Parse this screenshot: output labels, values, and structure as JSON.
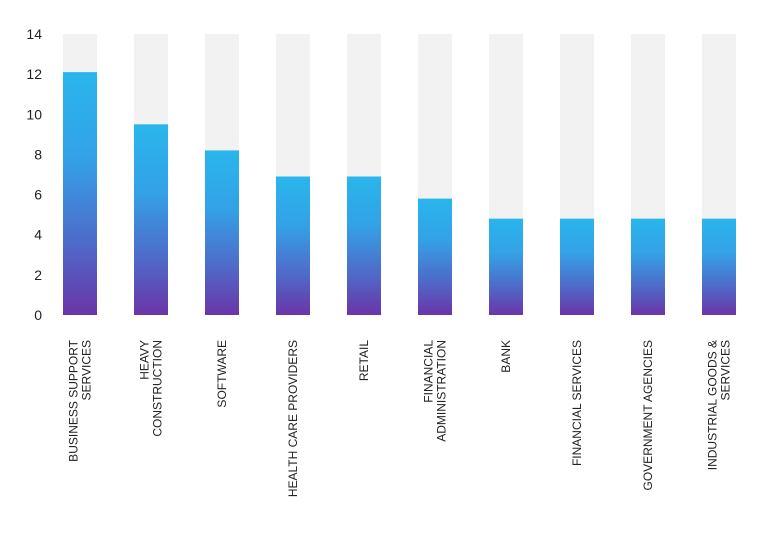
{
  "chart_data": {
    "type": "bar",
    "title": "",
    "xlabel": "",
    "ylabel": "",
    "categories": [
      [
        "BUSINESS SUPPORT",
        "SERVICES"
      ],
      [
        "HEAVY",
        "CONSTRUCTION"
      ],
      [
        "SOFTWARE"
      ],
      [
        "HEALTH CARE PROVIDERS"
      ],
      [
        "RETAIL"
      ],
      [
        "FINANCIAL",
        "ADMINISTRATION"
      ],
      [
        "BANK"
      ],
      [
        "FINANCIAL SERVICES"
      ],
      [
        "GOVERNMENT AGENCIES"
      ],
      [
        "INDUSTRIAL GOODS &",
        "SERVICES"
      ]
    ],
    "values": [
      12.1,
      9.5,
      8.2,
      6.9,
      6.9,
      5.8,
      4.8,
      4.8,
      4.8,
      4.8
    ],
    "ylim": [
      0,
      14
    ],
    "yticks": [
      0,
      2,
      4,
      6,
      8,
      10,
      12,
      14
    ],
    "grid": false,
    "legend": "none",
    "colors": {
      "bar_top": "#29b6ec",
      "bar_bottom": "#6a35a8",
      "background_bar": "#f2f2f2",
      "text": "#222222"
    }
  }
}
